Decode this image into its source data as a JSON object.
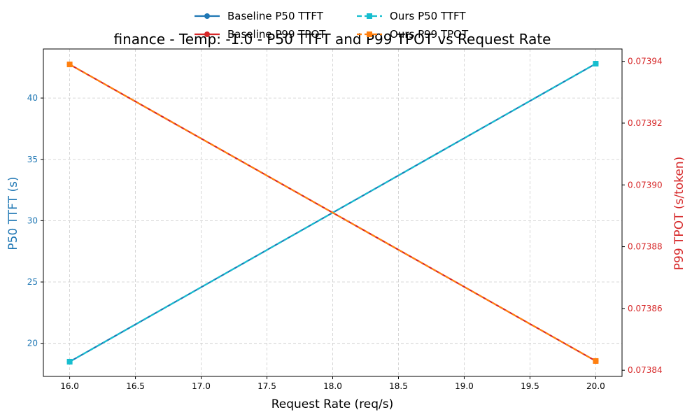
{
  "chart_data": {
    "type": "line",
    "title": "finance - Temp: -1.0 - P50 TTFT and P99 TPOT vs Request Rate",
    "xlabel": "Request Rate (req/s)",
    "ylabel_left": "P50 TTFT (s)",
    "ylabel_right": "P99 TPOT (s/token)",
    "x": [
      16.0,
      20.0
    ],
    "xlim": [
      15.8,
      20.2
    ],
    "ylim_left": [
      17.3,
      44.0
    ],
    "ylim_right": [
      0.073838,
      0.073944
    ],
    "x_ticks": [
      16.0,
      16.5,
      17.0,
      17.5,
      18.0,
      18.5,
      19.0,
      19.5,
      20.0
    ],
    "x_tick_labels": [
      "16.0",
      "16.5",
      "17.0",
      "17.5",
      "18.0",
      "18.5",
      "19.0",
      "19.5",
      "20.0"
    ],
    "y_left_ticks": [
      20,
      25,
      30,
      35,
      40
    ],
    "y_left_tick_labels": [
      "20",
      "25",
      "30",
      "35",
      "40"
    ],
    "y_right_ticks": [
      0.07384,
      0.07386,
      0.07388,
      0.0739,
      0.07392,
      0.07394
    ],
    "y_right_tick_labels": [
      "0.07384",
      "0.07386",
      "0.07388",
      "0.07390",
      "0.07392",
      "0.07394"
    ],
    "grid": true,
    "legend_position": "top-center",
    "left_axis_color": "#1f77b4",
    "right_axis_color": "#d62728",
    "series": [
      {
        "name": "Baseline P50 TTFT",
        "axis": "left",
        "color": "#1f77b4",
        "style": "solid",
        "marker": "circle",
        "values": [
          18.5,
          42.8
        ]
      },
      {
        "name": "Ours P50 TTFT",
        "axis": "left",
        "color": "#17becf",
        "style": "dashed",
        "marker": "square",
        "values": [
          18.5,
          42.8
        ]
      },
      {
        "name": "Baseline P99 TPOT",
        "axis": "right",
        "color": "#d62728",
        "style": "solid",
        "marker": "circle",
        "values": [
          0.073939,
          0.073843
        ]
      },
      {
        "name": "Ours P99 TPOT",
        "axis": "right",
        "color": "#ff7f0e",
        "style": "dashed",
        "marker": "square",
        "values": [
          0.073939,
          0.073843
        ]
      }
    ]
  }
}
